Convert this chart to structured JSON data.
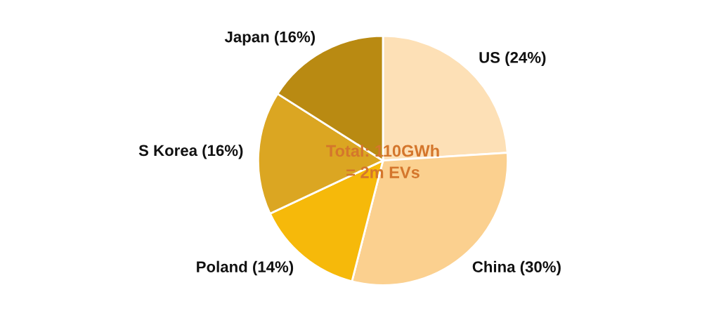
{
  "chart_data": {
    "type": "pie",
    "categories": [
      "US (24%)",
      "China (30%)",
      "Poland (14%)",
      "S Korea (16%)",
      "Japan (16%)"
    ],
    "values": [
      24,
      30,
      14,
      16,
      16
    ],
    "colors": [
      "#fde0b6",
      "#fbd08f",
      "#f6b90a",
      "#dba622",
      "#b98a12"
    ],
    "annotations": [
      "Total: 110GWh\n= 2m EVs"
    ]
  }
}
